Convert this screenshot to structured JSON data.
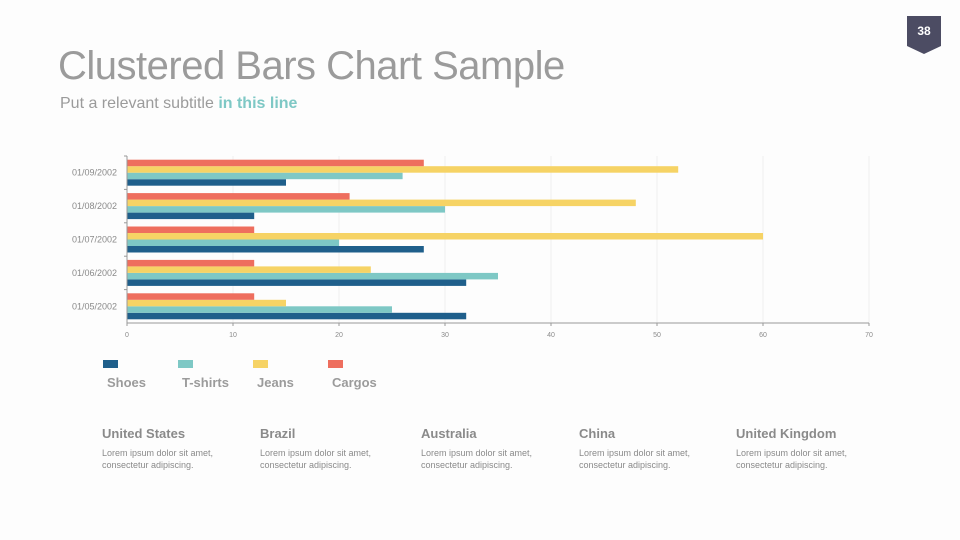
{
  "page_number": "38",
  "title": "Clustered Bars Chart Sample",
  "subtitle": {
    "prefix": "Put a relevant subtitle ",
    "highlight": "in this line"
  },
  "chart_data": {
    "type": "bar",
    "orientation": "horizontal",
    "categories": [
      "01/05/2002",
      "01/06/2002",
      "01/07/2002",
      "01/08/2002",
      "01/09/2002"
    ],
    "series": [
      {
        "name": "Shoes",
        "color": "#1f5f8b",
        "values": [
          32,
          32,
          28,
          12,
          15
        ]
      },
      {
        "name": "T-shirts",
        "color": "#7ec8c5",
        "values": [
          25,
          35,
          20,
          30,
          26
        ]
      },
      {
        "name": "Jeans",
        "color": "#f6d365",
        "values": [
          15,
          23,
          60,
          48,
          52
        ]
      },
      {
        "name": "Cargos",
        "color": "#ee6e5e",
        "values": [
          12,
          12,
          12,
          21,
          28
        ]
      }
    ],
    "xlim": [
      0,
      70
    ],
    "xticks": [
      0,
      10,
      20,
      30,
      40,
      50,
      60,
      70
    ],
    "grid": true,
    "legend_position": "bottom-left"
  },
  "countries": [
    {
      "name": "United States",
      "desc1": "Lorem ipsum dolor sit amet,",
      "desc2": "consectetur adipiscing."
    },
    {
      "name": "Brazil",
      "desc1": "Lorem ipsum dolor sit amet,",
      "desc2": "consectetur adipiscing."
    },
    {
      "name": "Australia",
      "desc1": "Lorem ipsum dolor sit amet,",
      "desc2": "consectetur adipiscing."
    },
    {
      "name": "China",
      "desc1": "Lorem ipsum dolor sit amet,",
      "desc2": "consectetur adipiscing."
    },
    {
      "name": "United Kingdom",
      "desc1": "Lorem ipsum dolor sit amet,",
      "desc2": "consectetur adipiscing."
    }
  ]
}
